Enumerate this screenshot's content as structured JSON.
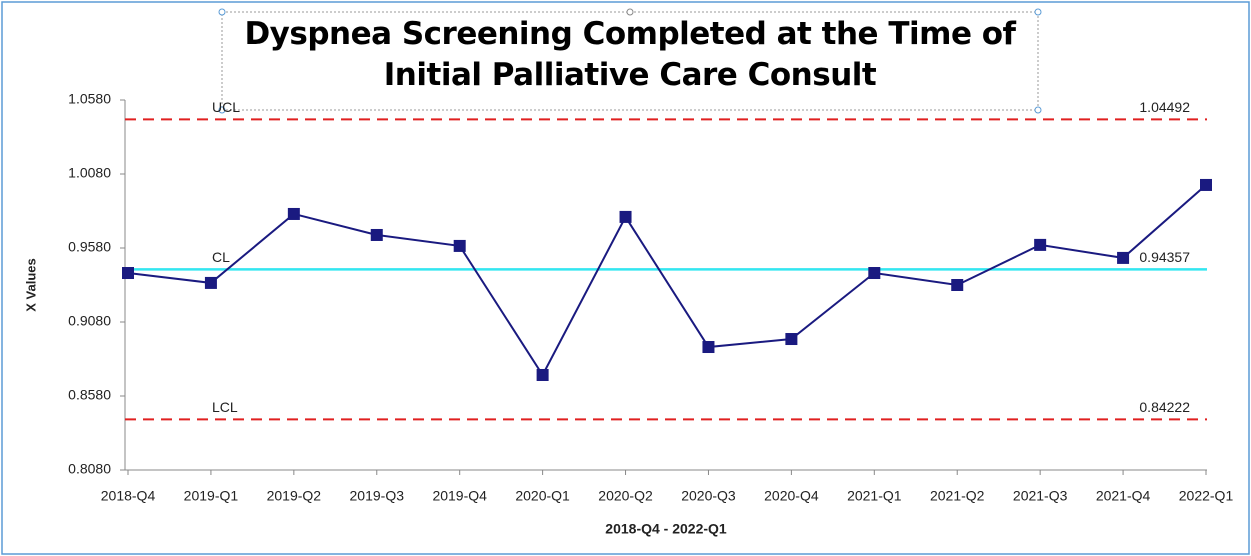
{
  "chart_data": {
    "type": "line",
    "title": "Dyspnea Screening Completed at the Time of Initial Palliative Care Consult",
    "x_label": "2018-Q4 - 2022-Q1",
    "y_label": "X Values",
    "categories": [
      "2018-Q4",
      "2019-Q1",
      "2019-Q2",
      "2019-Q3",
      "2019-Q4",
      "2020-Q1",
      "2020-Q2",
      "2020-Q3",
      "2020-Q4",
      "2021-Q1",
      "2021-Q2",
      "2021-Q3",
      "2021-Q4",
      "2022-Q1"
    ],
    "series": [
      {
        "name": "X Values",
        "color": "#1a1a80",
        "values": [
          0.9411,
          0.9344,
          0.981,
          0.9668,
          0.9594,
          0.8722,
          0.979,
          0.8911,
          0.8965,
          0.9411,
          0.933,
          0.9601,
          0.9513,
          1.0006
        ]
      }
    ],
    "control_lines": [
      {
        "name": "UCL",
        "value": 1.04492,
        "value_label": "1.04492",
        "color": "#e02020",
        "dashed": true
      },
      {
        "name": "CL",
        "value": 0.94357,
        "value_label": "0.94357",
        "color": "#33e6f0",
        "dashed": false
      },
      {
        "name": "LCL",
        "value": 0.84222,
        "value_label": "0.84222",
        "color": "#e02020",
        "dashed": true
      }
    ],
    "ylim": [
      0.808,
      1.058
    ],
    "yticks": [
      {
        "value": 0.808,
        "label": "0.8080"
      },
      {
        "value": 0.858,
        "label": "0.8580"
      },
      {
        "value": 0.908,
        "label": "0.9080"
      },
      {
        "value": 0.958,
        "label": "0.9580"
      },
      {
        "value": 1.008,
        "label": "1.0080"
      },
      {
        "value": 1.058,
        "label": "1.0580"
      }
    ]
  }
}
